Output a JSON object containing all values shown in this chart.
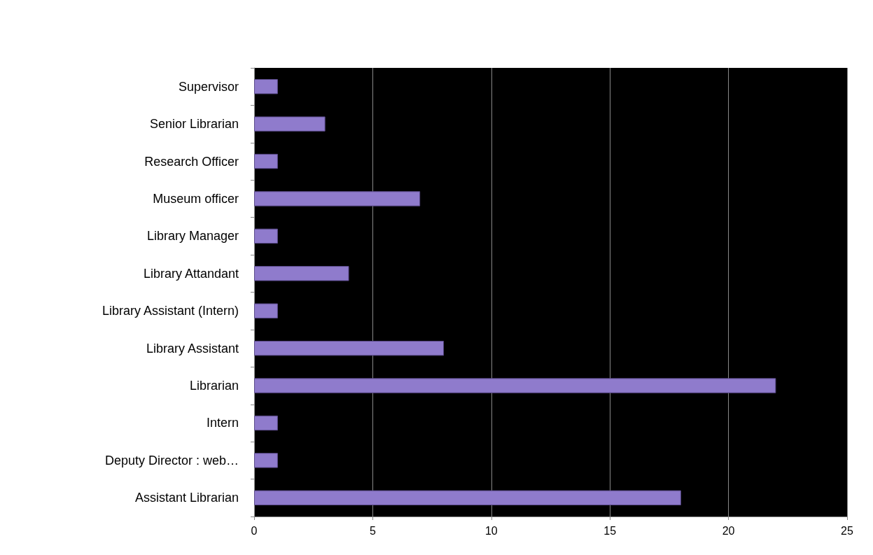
{
  "chart_data": {
    "type": "bar",
    "orientation": "horizontal",
    "categories": [
      "Supervisor",
      "Senior Librarian",
      "Research Officer",
      "Museum officer",
      "Library Manager",
      "Library Attandant",
      "Library Assistant (Intern)",
      "Library Assistant",
      "Librarian",
      "Intern",
      "Deputy Director : web…",
      "Assistant Librarian"
    ],
    "values": [
      1,
      3,
      1,
      7,
      1,
      4,
      1,
      8,
      22,
      1,
      1,
      18
    ],
    "color": "#8f7bcc",
    "xlim": [
      0,
      25
    ],
    "xticks": [
      0,
      5,
      10,
      15,
      20,
      25
    ],
    "grid": "x"
  }
}
